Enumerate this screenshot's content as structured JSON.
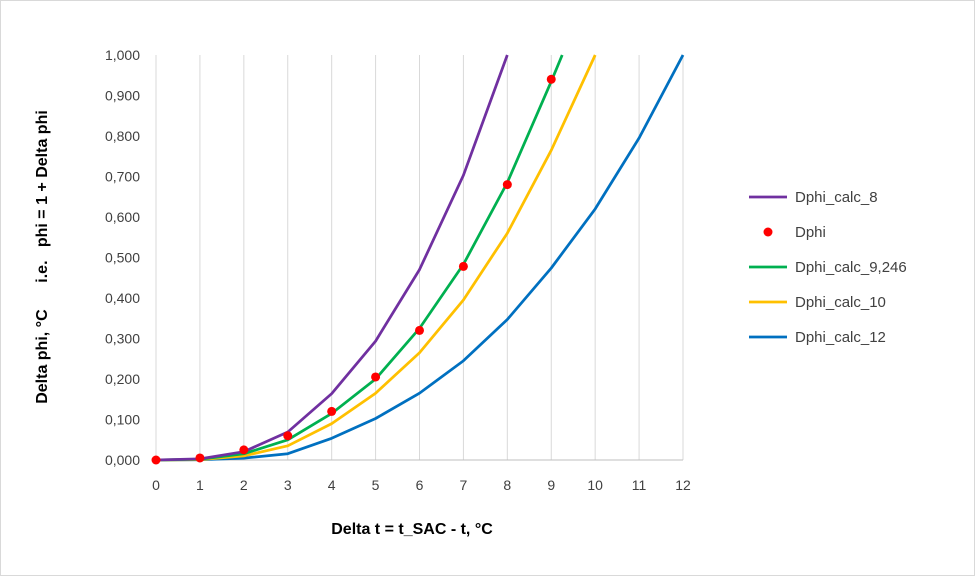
{
  "chart_data": {
    "type": "line",
    "title": "",
    "xlabel": "Delta t = t_SAC - t, °C",
    "ylabel": "Delta phi, °C      i.e.   phi = 1 + Delta phi",
    "xlim": [
      0,
      12
    ],
    "ylim": [
      0,
      1
    ],
    "x_ticks": [
      0,
      1,
      2,
      3,
      4,
      5,
      6,
      7,
      8,
      9,
      10,
      11,
      12
    ],
    "x_tick_labels": [
      "0",
      "1",
      "2",
      "3",
      "4",
      "5",
      "6",
      "7",
      "8",
      "9",
      "10",
      "11",
      "12"
    ],
    "y_ticks": [
      0,
      0.1,
      0.2,
      0.3,
      0.4,
      0.5,
      0.6,
      0.7,
      0.8,
      0.9,
      1.0
    ],
    "y_tick_labels": [
      "0,000",
      "0,100",
      "0,200",
      "0,300",
      "0,400",
      "0,500",
      "0,600",
      "0,700",
      "0,800",
      "0,900",
      "1,000"
    ],
    "grid": {
      "vertical": true,
      "horizontal": false
    },
    "legend": "right",
    "series": [
      {
        "name": "Dphi_calc_8",
        "kind": "line",
        "color": "#7030a0",
        "x": [
          0,
          1,
          2,
          3,
          4,
          5,
          6,
          7,
          8
        ],
        "y": [
          0,
          0.0026,
          0.0205,
          0.0692,
          0.164,
          0.2935,
          0.47,
          0.703,
          1.0
        ]
      },
      {
        "name": "Dphi",
        "kind": "scatter",
        "color": "#ff0000",
        "x": [
          0,
          1,
          2,
          3,
          4,
          5,
          6,
          7,
          8,
          9
        ],
        "y": [
          0,
          0.005,
          0.025,
          0.06,
          0.12,
          0.205,
          0.32,
          0.478,
          0.68,
          0.94
        ]
      },
      {
        "name": "Dphi_calc_9,246",
        "kind": "line",
        "color": "#00b050",
        "x": [
          0,
          1,
          2,
          3,
          4,
          5,
          6,
          7,
          8,
          9,
          9.25
        ],
        "y": [
          0,
          0.0017,
          0.0152,
          0.05,
          0.115,
          0.2,
          0.325,
          0.483,
          0.685,
          0.935,
          1.0
        ]
      },
      {
        "name": "Dphi_calc_10",
        "kind": "line",
        "color": "#ffc000",
        "x": [
          0,
          1,
          2,
          3,
          4,
          5,
          6,
          7,
          8,
          9,
          10
        ],
        "y": [
          0,
          0.001,
          0.01,
          0.035,
          0.09,
          0.165,
          0.265,
          0.395,
          0.56,
          0.765,
          1.0
        ]
      },
      {
        "name": "Dphi_calc_12",
        "kind": "line",
        "color": "#0070c0",
        "x": [
          0,
          1,
          2,
          3,
          4,
          5,
          6,
          7,
          8,
          9,
          10,
          11,
          12
        ],
        "y": [
          0,
          0.0006,
          0.0046,
          0.0156,
          0.0537,
          0.1025,
          0.165,
          0.245,
          0.347,
          0.474,
          0.62,
          0.795,
          1.0
        ]
      }
    ]
  }
}
